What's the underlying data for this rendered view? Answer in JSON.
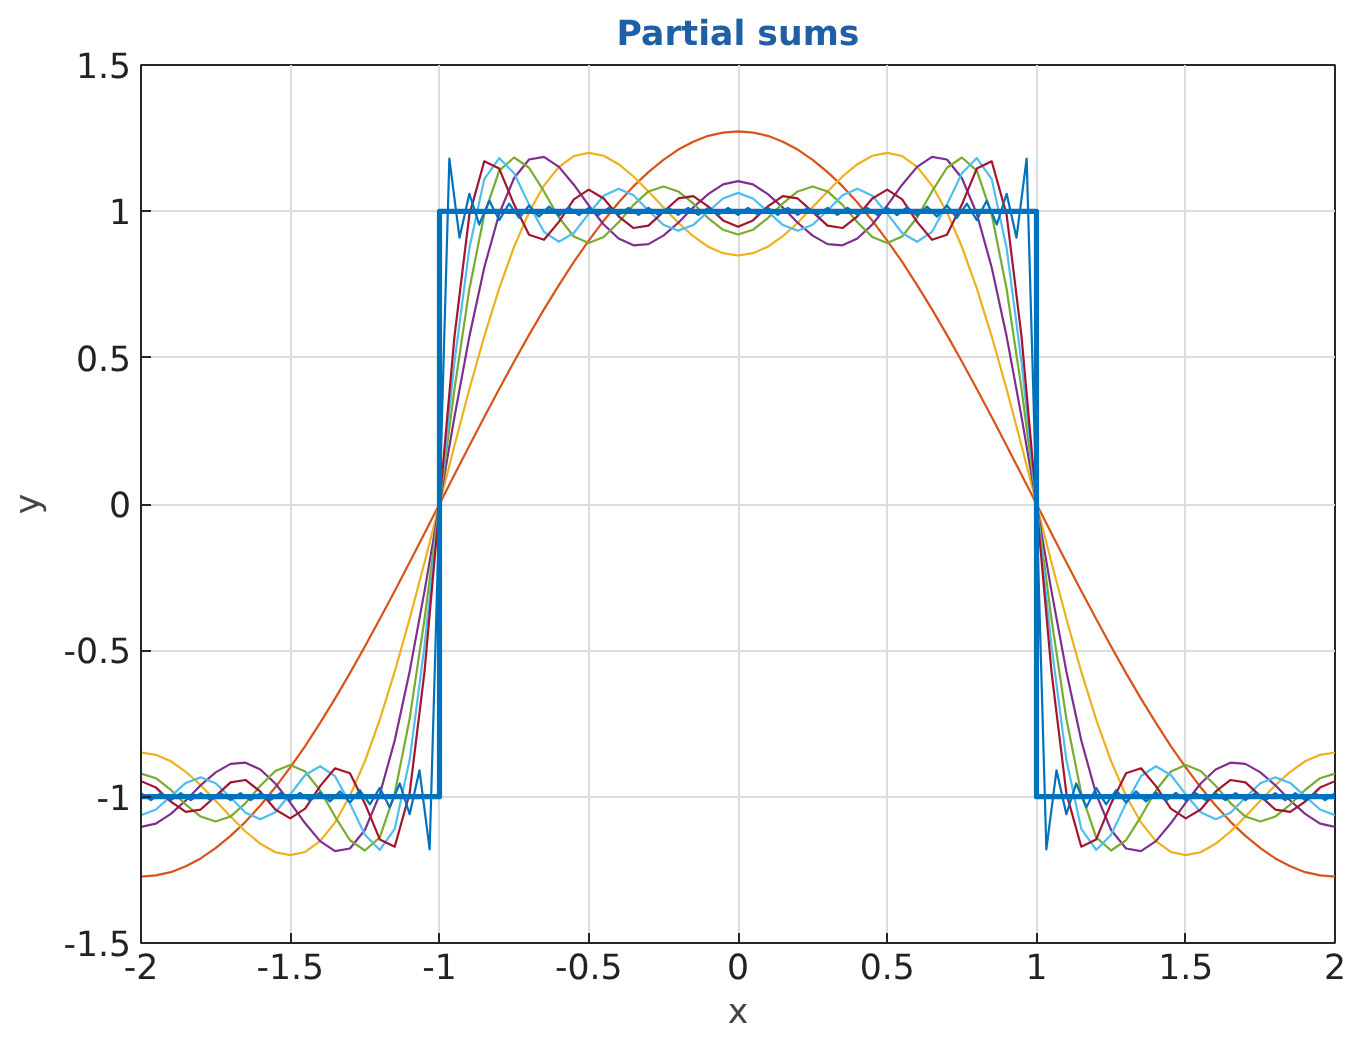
{
  "chart_data": {
    "type": "line",
    "title": "Partial sums",
    "xlabel": "x",
    "ylabel": "y",
    "xlim": [
      -2,
      2
    ],
    "ylim": [
      -1.5,
      1.5
    ],
    "xticks": [
      -2,
      -1.5,
      -1,
      -0.5,
      0,
      0.5,
      1,
      1.5,
      2
    ],
    "yticks": [
      -1.5,
      -1,
      -0.5,
      0,
      0.5,
      1,
      1.5
    ],
    "grid": true,
    "line_style": "solid",
    "marker": "none",
    "x": [
      -2,
      -1.95,
      -1.9,
      -1.85,
      -1.8,
      -1.75,
      -1.7,
      -1.65,
      -1.6,
      -1.55,
      -1.5,
      -1.45,
      -1.4,
      -1.35,
      -1.3,
      -1.25,
      -1.2,
      -1.15,
      -1.1,
      -1.05,
      -1,
      -0.95,
      -0.9,
      -0.85,
      -0.8,
      -0.75,
      -0.7,
      -0.65,
      -0.6,
      -0.55,
      -0.5,
      -0.45,
      -0.4,
      -0.35,
      -0.3,
      -0.25,
      -0.2,
      -0.15,
      -0.1,
      -0.05,
      0,
      0.05,
      0.1,
      0.15,
      0.2,
      0.25,
      0.3,
      0.35,
      0.4,
      0.45,
      0.5,
      0.55,
      0.6,
      0.65,
      0.7,
      0.75,
      0.8,
      0.85,
      0.9,
      0.95,
      1,
      1.05,
      1.1,
      1.15,
      1.2,
      1.25,
      1.3,
      1.35,
      1.4,
      1.45,
      1.5,
      1.55,
      1.6,
      1.65,
      1.7,
      1.75,
      1.8,
      1.85,
      1.9,
      1.95,
      2
    ],
    "series": [
      {
        "color": "#0072bd",
        "x": [
          -2,
          -1,
          -1,
          1,
          1,
          2
        ],
        "values": [
          -1,
          -1,
          1,
          1,
          -1,
          -1
        ]
      },
      {
        "color": "#d95319",
        "values": [
          -1.273,
          -1.269,
          -1.258,
          -1.238,
          -1.211,
          -1.176,
          -1.134,
          -1.086,
          -1.03,
          -0.968,
          -0.9,
          -0.827,
          -0.748,
          -0.665,
          -0.578,
          -0.487,
          -0.393,
          -0.297,
          -0.199,
          -0.1,
          0,
          0.1,
          0.199,
          0.297,
          0.393,
          0.487,
          0.578,
          0.665,
          0.748,
          0.827,
          0.9,
          0.968,
          1.03,
          1.086,
          1.134,
          1.176,
          1.211,
          1.238,
          1.258,
          1.269,
          1.273,
          1.269,
          1.258,
          1.238,
          1.211,
          1.176,
          1.134,
          1.086,
          1.03,
          0.968,
          0.9,
          0.827,
          0.748,
          0.665,
          0.578,
          0.487,
          0.393,
          0.297,
          0.199,
          0.1,
          0,
          -0.1,
          -0.199,
          -0.297,
          -0.393,
          -0.487,
          -0.578,
          -0.665,
          -0.748,
          -0.827,
          -0.9,
          -0.968,
          -1.03,
          -1.086,
          -1.134,
          -1.176,
          -1.211,
          -1.238,
          -1.258,
          -1.269,
          -1.273
        ]
      },
      {
        "color": "#edb120",
        "values": [
          -0.849,
          -0.857,
          -0.879,
          -0.915,
          -0.961,
          -1.014,
          -1.068,
          -1.119,
          -1.161,
          -1.19,
          -1.2,
          -1.189,
          -1.152,
          -1.088,
          -0.997,
          -0.879,
          -0.737,
          -0.573,
          -0.392,
          -0.199,
          0,
          0.199,
          0.392,
          0.573,
          0.737,
          0.879,
          0.997,
          1.088,
          1.152,
          1.189,
          1.2,
          1.19,
          1.161,
          1.119,
          1.068,
          1.014,
          0.961,
          0.915,
          0.879,
          0.857,
          0.849,
          0.857,
          0.879,
          0.915,
          0.961,
          1.014,
          1.068,
          1.119,
          1.161,
          1.19,
          1.2,
          1.189,
          1.152,
          1.088,
          0.997,
          0.879,
          0.737,
          0.573,
          0.392,
          0.199,
          0,
          -0.199,
          -0.392,
          -0.573,
          -0.737,
          -0.879,
          -0.997,
          -1.088,
          -1.152,
          -1.189,
          -1.2,
          -1.19,
          -1.161,
          -1.119,
          -1.068,
          -1.014,
          -0.961,
          -0.915,
          -0.879,
          -0.857,
          -0.849
        ]
      },
      {
        "color": "#7e2f8e",
        "values": [
          -1.103,
          -1.092,
          -1.059,
          -1.013,
          -0.961,
          -0.917,
          -0.888,
          -0.884,
          -0.907,
          -0.955,
          -1.02,
          -1.091,
          -1.152,
          -1.186,
          -1.177,
          -1.114,
          -0.992,
          -0.808,
          -0.572,
          -0.297,
          0,
          0.297,
          0.572,
          0.808,
          0.992,
          1.114,
          1.177,
          1.186,
          1.152,
          1.091,
          1.02,
          0.955,
          0.907,
          0.884,
          0.888,
          0.917,
          0.961,
          1.013,
          1.059,
          1.092,
          1.103,
          1.092,
          1.059,
          1.013,
          0.961,
          0.917,
          0.888,
          0.884,
          0.907,
          0.955,
          1.02,
          1.091,
          1.152,
          1.186,
          1.177,
          1.114,
          0.992,
          0.808,
          0.572,
          0.297,
          0,
          -0.297,
          -0.572,
          -0.808,
          -0.992,
          -1.114,
          -1.177,
          -1.186,
          -1.152,
          -1.091,
          -1.02,
          -0.955,
          -0.907,
          -0.884,
          -0.888,
          -0.917,
          -0.961,
          -1.013,
          -1.059,
          -1.092,
          -1.103
        ]
      },
      {
        "color": "#77ac30",
        "values": [
          -0.921,
          -0.937,
          -0.977,
          -1.027,
          -1.068,
          -1.085,
          -1.068,
          -1.022,
          -0.963,
          -0.912,
          -0.892,
          -0.914,
          -0.979,
          -1.068,
          -1.149,
          -1.184,
          -1.139,
          -0.989,
          -0.734,
          -0.392,
          0,
          0.392,
          0.734,
          0.989,
          1.139,
          1.184,
          1.149,
          1.068,
          0.979,
          0.914,
          0.892,
          0.912,
          0.963,
          1.022,
          1.068,
          1.085,
          1.068,
          1.027,
          0.977,
          0.937,
          0.921,
          0.937,
          0.977,
          1.027,
          1.068,
          1.085,
          1.068,
          1.022,
          0.963,
          0.912,
          0.892,
          0.914,
          0.979,
          1.068,
          1.149,
          1.184,
          1.139,
          0.989,
          0.734,
          0.392,
          0,
          -0.392,
          -0.734,
          -0.989,
          -1.139,
          -1.184,
          -1.149,
          -1.068,
          -0.979,
          -0.914,
          -0.892,
          -0.912,
          -0.963,
          -1.022,
          -1.068,
          -1.085,
          -1.068,
          -1.027,
          -0.977,
          -0.937,
          -0.921
        ]
      },
      {
        "color": "#4dbeee",
        "values": [
          -1.063,
          -1.044,
          -0.999,
          -0.953,
          -0.934,
          -0.954,
          -1.003,
          -1.055,
          -1.077,
          -1.053,
          -0.992,
          -0.926,
          -0.896,
          -0.93,
          -1.023,
          -1.13,
          -1.182,
          -1.11,
          -0.874,
          -0.483,
          0,
          0.483,
          0.874,
          1.11,
          1.182,
          1.13,
          1.023,
          0.93,
          0.896,
          0.926,
          0.992,
          1.053,
          1.077,
          1.055,
          1.003,
          0.954,
          0.934,
          0.953,
          0.999,
          1.044,
          1.063,
          1.044,
          0.999,
          0.953,
          0.934,
          0.954,
          1.003,
          1.055,
          1.077,
          1.053,
          0.992,
          0.926,
          0.896,
          0.93,
          1.023,
          1.13,
          1.182,
          1.11,
          0.874,
          0.483,
          0,
          -0.483,
          -0.874,
          -1.11,
          -1.182,
          -1.13,
          -1.023,
          -0.93,
          -0.896,
          -0.926,
          -0.992,
          -1.053,
          -1.077,
          -1.055,
          -1.003,
          -0.954,
          -0.934,
          -0.953,
          -0.999,
          -1.044,
          -1.063
        ]
      },
      {
        "color": "#a2142f",
        "values": [
          -0.947,
          -0.969,
          -1.017,
          -1.052,
          -1.044,
          -0.998,
          -0.951,
          -0.943,
          -0.983,
          -1.044,
          -1.074,
          -1.041,
          -0.964,
          -0.903,
          -0.92,
          -1.023,
          -1.146,
          -1.171,
          -0.988,
          -0.571,
          0,
          0.571,
          0.988,
          1.171,
          1.146,
          1.023,
          0.92,
          0.903,
          0.964,
          1.041,
          1.074,
          1.044,
          0.983,
          0.943,
          0.951,
          0.998,
          1.044,
          1.052,
          1.017,
          0.969,
          0.947,
          0.969,
          1.017,
          1.052,
          1.044,
          0.998,
          0.951,
          0.943,
          0.983,
          1.044,
          1.074,
          1.041,
          0.964,
          0.903,
          0.92,
          1.023,
          1.146,
          1.171,
          0.988,
          0.571,
          0,
          -0.571,
          -0.988,
          -1.171,
          -1.146,
          -1.023,
          -0.92,
          -0.903,
          -0.964,
          -1.041,
          -1.074,
          -1.044,
          -0.983,
          -0.943,
          -0.951,
          -0.998,
          -1.044,
          -1.052,
          -1.017,
          -0.969,
          -0.947
        ]
      },
      {
        "color": "#0072bd",
        "x": [
          -2,
          -1.967,
          -1.933,
          -1.9,
          -1.867,
          -1.833,
          -1.8,
          -1.767,
          -1.733,
          -1.7,
          -1.667,
          -1.633,
          -1.6,
          -1.567,
          -1.533,
          -1.5,
          -1.467,
          -1.433,
          -1.4,
          -1.367,
          -1.333,
          -1.3,
          -1.267,
          -1.233,
          -1.2,
          -1.167,
          -1.133,
          -1.1,
          -1.067,
          -1.033,
          -1,
          -0.967,
          -0.933,
          -0.9,
          -0.867,
          -0.833,
          -0.8,
          -0.767,
          -0.733,
          -0.7,
          -0.667,
          -0.633,
          -0.6,
          -0.567,
          -0.533,
          -0.5,
          -0.467,
          -0.433,
          -0.4,
          -0.367,
          -0.333,
          -0.3,
          -0.267,
          -0.233,
          -0.2,
          -0.167,
          -0.133,
          -0.1,
          -0.067,
          -0.033,
          0,
          0.033,
          0.067,
          0.1,
          0.133,
          0.167,
          0.2,
          0.233,
          0.267,
          0.3,
          0.333,
          0.367,
          0.4,
          0.433,
          0.467,
          0.5,
          0.533,
          0.567,
          0.6,
          0.633,
          0.667,
          0.7,
          0.733,
          0.767,
          0.8,
          0.833,
          0.867,
          0.9,
          0.933,
          0.967,
          1,
          1.033,
          1.067,
          1.1,
          1.133,
          1.167,
          1.2,
          1.233,
          1.267,
          1.3,
          1.333,
          1.367,
          1.4,
          1.433,
          1.467,
          1.5,
          1.533,
          1.567,
          1.6,
          1.633,
          1.667,
          1.7,
          1.733,
          1.767,
          1.8,
          1.833,
          1.867,
          1.9,
          1.933,
          1.967,
          2
        ],
        "values": [
          -0.988,
          -1.012,
          -0.988,
          -1.012,
          -0.988,
          -1.012,
          -0.988,
          -1.012,
          -0.988,
          -1.012,
          -0.988,
          -1.012,
          -0.988,
          -1.012,
          -0.988,
          -1.012,
          -0.987,
          -1.014,
          -0.985,
          -1.016,
          -0.982,
          -1.02,
          -0.978,
          -1.026,
          -0.97,
          -1.036,
          -0.955,
          -1.06,
          -0.91,
          -1.18,
          0,
          1.18,
          0.91,
          1.06,
          0.955,
          1.036,
          0.97,
          1.026,
          0.978,
          1.02,
          0.982,
          1.016,
          0.985,
          1.014,
          0.987,
          1.012,
          0.988,
          1.012,
          0.988,
          1.012,
          0.988,
          1.012,
          0.988,
          1.012,
          0.988,
          1.012,
          0.988,
          1.012,
          0.988,
          1.012,
          0.988,
          1.012,
          0.988,
          1.012,
          0.988,
          1.012,
          0.988,
          1.012,
          0.988,
          1.012,
          0.988,
          1.012,
          0.988,
          1.012,
          0.988,
          1.012,
          0.987,
          1.014,
          0.985,
          1.016,
          0.982,
          1.02,
          0.978,
          1.026,
          0.97,
          1.036,
          0.955,
          1.06,
          0.91,
          1.18,
          0,
          -1.18,
          -0.91,
          -1.06,
          -0.955,
          -1.036,
          -0.97,
          -1.026,
          -0.978,
          -1.02,
          -0.982,
          -1.016,
          -0.985,
          -1.014,
          -0.987,
          -1.012,
          -0.988,
          -1.012,
          -0.988,
          -1.012,
          -0.988,
          -1.012,
          -0.988,
          -1.012,
          -0.988,
          -1.012,
          -0.988,
          -1.012,
          -0.988,
          -1.012,
          -0.988
        ]
      }
    ]
  }
}
